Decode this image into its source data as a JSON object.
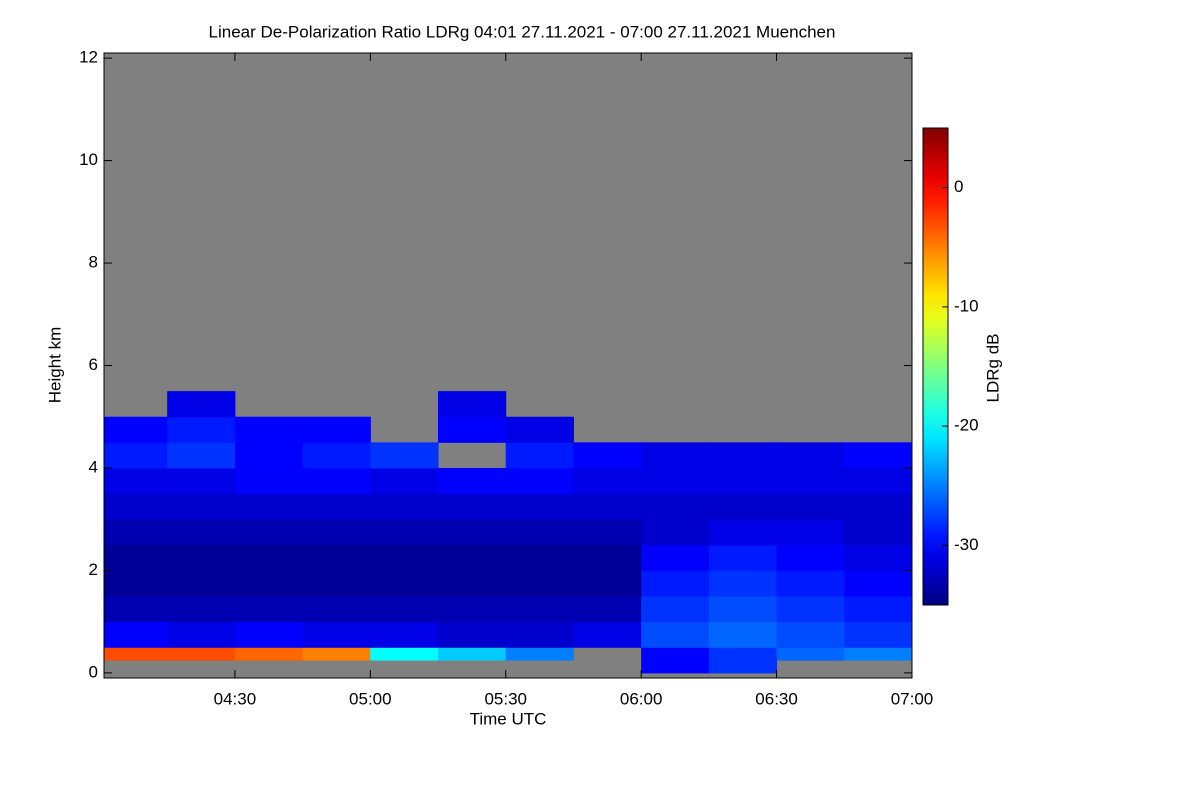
{
  "chart_data": {
    "type": "heatmap",
    "title": "Linear De-Polarization Ratio LDRg   04:01 27.11.2021 - 07:00 27.11.2021 Muenchen",
    "x_label": "Time UTC",
    "y_label": "Height km",
    "colorbar_label": "LDRg dB",
    "colormap": "jet",
    "missing_color": "#808080",
    "xlim": [
      4.0167,
      7.0
    ],
    "xticks": [
      {
        "value": 4.5,
        "label": "04:30"
      },
      {
        "value": 5.0,
        "label": "05:00"
      },
      {
        "value": 5.5,
        "label": "05:30"
      },
      {
        "value": 6.0,
        "label": "06:00"
      },
      {
        "value": 6.5,
        "label": "06:30"
      },
      {
        "value": 7.0,
        "label": "07:00"
      }
    ],
    "ylim": [
      -0.1,
      12.1
    ],
    "yticks": [
      0,
      2,
      4,
      6,
      8,
      10,
      12
    ],
    "zlim": [
      -35,
      5
    ],
    "zticks": [
      0,
      -10,
      -20,
      -30
    ],
    "xbins": [
      4.0,
      4.25,
      4.5,
      4.75,
      5.0,
      5.25,
      5.5,
      5.75,
      6.0,
      6.25,
      6.5,
      6.75,
      7.0
    ],
    "ybins": [
      0,
      0.25,
      0.5,
      1,
      1.5,
      2,
      2.5,
      3,
      3.5,
      4,
      4.5,
      5,
      5.5
    ],
    "z": [
      [
        null,
        null,
        null,
        null,
        null,
        null,
        null,
        null,
        -30,
        -28,
        null,
        null
      ],
      [
        -3,
        -3,
        -4,
        -5,
        -20,
        -22,
        -25,
        null,
        -30,
        -28,
        -26,
        -25
      ],
      [
        -30,
        -31,
        -30,
        -31,
        -31,
        -32,
        -32,
        -31,
        -27,
        -26,
        -27,
        -28
      ],
      [
        -33,
        -33,
        -33,
        -33,
        -33,
        -33,
        -33,
        -33,
        -28,
        -27,
        -28,
        -29
      ],
      [
        -34,
        -34,
        -34,
        -34,
        -34,
        -34,
        -34,
        -34,
        -29,
        -28,
        -29,
        -30
      ],
      [
        -34,
        -34,
        -34,
        -34,
        -34,
        -34,
        -34,
        -34,
        -30,
        -29,
        -30,
        -31
      ],
      [
        -33,
        -33,
        -33,
        -33,
        -33,
        -33,
        -33,
        -33,
        -32,
        -31,
        -31,
        -32
      ],
      [
        -32,
        -32,
        -32,
        -32,
        -32,
        -32,
        -32,
        -32,
        -32,
        -32,
        -32,
        -32
      ],
      [
        -31,
        -31,
        -30,
        -30,
        -31,
        -30,
        -30,
        -31,
        -31,
        -31,
        -31,
        -31
      ],
      [
        -29,
        -28,
        -30,
        -29,
        -28,
        null,
        -29,
        -30,
        -31,
        -31,
        -31,
        -30
      ],
      [
        -30,
        -29,
        -30,
        -30,
        null,
        -30,
        -31,
        null,
        null,
        null,
        null,
        null
      ],
      [
        null,
        -31,
        null,
        null,
        null,
        -31,
        null,
        null,
        null,
        null,
        null,
        null
      ]
    ]
  }
}
